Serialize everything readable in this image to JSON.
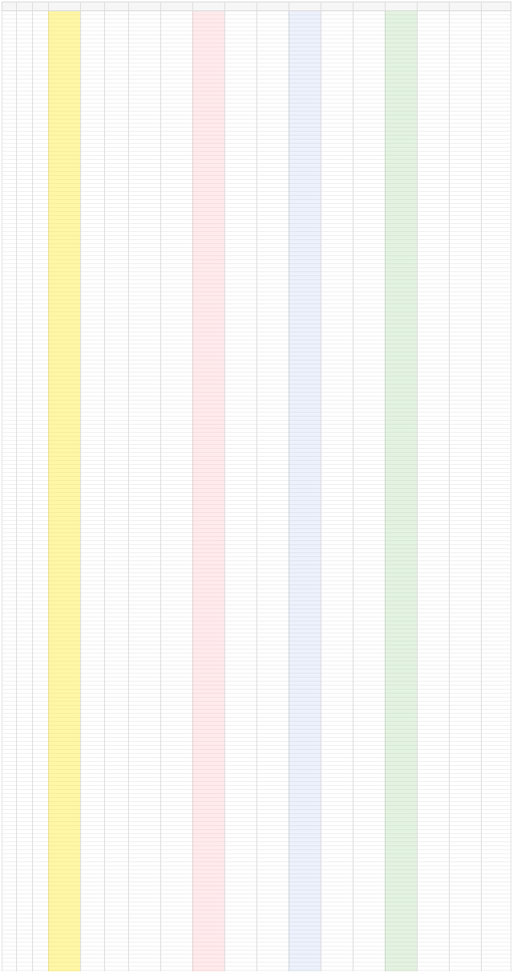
{
  "spreadsheet": {
    "note": "",
    "colors": {
      "highlight_yellow": "#ffe600",
      "highlight_pink": "#ffa0aa",
      "highlight_green": "#82c878",
      "text_blue": "#5078dc",
      "grid": "#e2e2e2"
    }
  }
}
